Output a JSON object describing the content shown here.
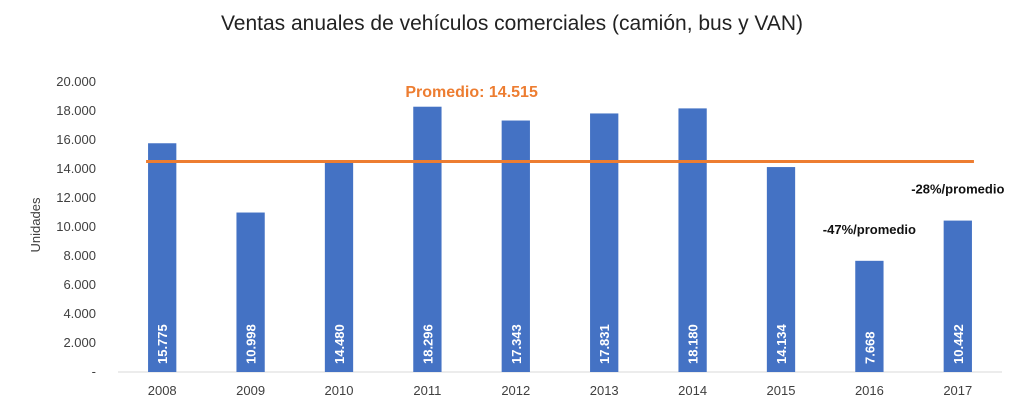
{
  "chart_data": {
    "type": "bar",
    "title": "Ventas anuales de vehículos comerciales (camión, bus y VAN)",
    "ylabel": "Unidades",
    "xlabel": "",
    "categories": [
      "2008",
      "2009",
      "2010",
      "2011",
      "2012",
      "2013",
      "2014",
      "2015",
      "2016",
      "2017"
    ],
    "values": [
      15775,
      10998,
      14480,
      18296,
      17343,
      17831,
      18180,
      14134,
      7668,
      10442
    ],
    "value_labels": [
      "15.775",
      "10.998",
      "14.480",
      "18.296",
      "17.343",
      "17.831",
      "18.180",
      "14.134",
      "7.668",
      "10.442"
    ],
    "ylim": [
      0,
      20000
    ],
    "y_ticks": [
      0,
      2000,
      4000,
      6000,
      8000,
      10000,
      12000,
      14000,
      16000,
      18000,
      20000
    ],
    "y_tick_labels": [
      "-",
      "2.000",
      "4.000",
      "6.000",
      "8.000",
      "10.000",
      "12.000",
      "14.000",
      "16.000",
      "18.000",
      "20.000"
    ],
    "grid": false,
    "legend": "none",
    "average": {
      "value": 14515,
      "label": "Promedio: 14.515"
    },
    "annotations": [
      {
        "category": "2016",
        "text": "-47%/promedio"
      },
      {
        "category": "2017",
        "text": "-28%/promedio"
      }
    ],
    "colors": {
      "bar": "#4472C4",
      "average": "#ED7D31",
      "axis": "#D9D9D9"
    }
  }
}
